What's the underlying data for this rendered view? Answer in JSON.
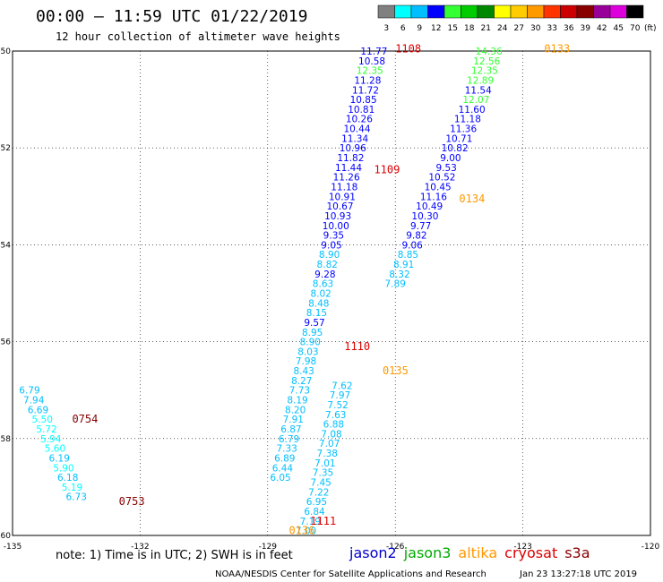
{
  "header": {
    "title": "00:00 – 11:59 UTC 01/22/2019",
    "subtitle": "12 hour collection of altimeter wave heights"
  },
  "colorbar": {
    "unit": "(ft)",
    "ticks": [
      "3",
      "6",
      "9",
      "12",
      "15",
      "18",
      "21",
      "24",
      "27",
      "30",
      "33",
      "36",
      "39",
      "42",
      "45",
      "70"
    ],
    "colors": [
      "#808080",
      "#00ffff",
      "#00bfff",
      "#0000ff",
      "#33ff33",
      "#00cc00",
      "#008800",
      "#ffff00",
      "#ffcc00",
      "#ff9900",
      "#ff3300",
      "#cc0000",
      "#880000",
      "#990099",
      "#dd00dd",
      "#000000"
    ]
  },
  "footer": {
    "note": "note:  1) Time is in UTC;  2) SWH is in feet",
    "credit": "NOAA/NESDIS Center for Satellite Applications and Research",
    "generated": "Jan 23 13:27:18 UTC 2019"
  },
  "legend": [
    {
      "name": "jason2",
      "color": "#0000cc"
    },
    {
      "name": "jason3",
      "color": "#00aa00"
    },
    {
      "name": "altika",
      "color": "#ff9900"
    },
    {
      "name": "cryosat",
      "color": "#dd0000"
    },
    {
      "name": "s3a",
      "color": "#880000"
    }
  ],
  "chart_data": {
    "type": "scatter",
    "xlim": [
      -135,
      -120
    ],
    "ylim": [
      -60,
      -50
    ],
    "x_ticks": [
      -135,
      -132,
      -129,
      -126,
      -123,
      -120
    ],
    "x_tick_labels": [
      "-135",
      "-132",
      "-129",
      "-126",
      "-123",
      "-120"
    ],
    "y_ticks": [
      -50,
      -52,
      -54,
      -56,
      -58,
      -60
    ],
    "y_tick_labels": [
      "-50",
      "-52",
      "-54",
      "-56",
      "-58",
      "-60"
    ],
    "grid": true,
    "color_scale": {
      "edges": [
        3,
        6,
        9,
        12,
        15,
        18,
        21,
        24,
        27,
        30,
        33,
        36,
        39,
        42,
        45,
        70
      ],
      "colors": [
        "#808080",
        "#00ffff",
        "#00bfff",
        "#0000ff",
        "#33ff33",
        "#00cc00",
        "#008800",
        "#ffff00",
        "#ffcc00",
        "#ff9900",
        "#ff3300",
        "#cc0000",
        "#880000",
        "#990099",
        "#dd00dd",
        "#000000"
      ]
    },
    "pass_labels": [
      {
        "text": "1108",
        "lon": -126.0,
        "lat": -49.95,
        "color": "#dd0000"
      },
      {
        "text": "1109",
        "lon": -126.5,
        "lat": -52.45,
        "color": "#dd0000"
      },
      {
        "text": "1110",
        "lon": -127.2,
        "lat": -56.1,
        "color": "#dd0000"
      },
      {
        "text": "1111",
        "lon": -128.0,
        "lat": -59.7,
        "color": "#dd0000"
      },
      {
        "text": "0133",
        "lon": -122.5,
        "lat": -49.95,
        "color": "#ff9900"
      },
      {
        "text": "0134",
        "lon": -124.5,
        "lat": -53.05,
        "color": "#ff9900"
      },
      {
        "text": "0135",
        "lon": -126.3,
        "lat": -56.6,
        "color": "#ff9900"
      },
      {
        "text": "0136",
        "lon": -128.5,
        "lat": -59.9,
        "color": "#ff9900"
      },
      {
        "text": "0754",
        "lon": -133.6,
        "lat": -57.6,
        "color": "#880000"
      },
      {
        "text": "0753",
        "lon": -132.5,
        "lat": -59.3,
        "color": "#880000"
      }
    ],
    "series": [
      {
        "name": "1108",
        "points": [
          {
            "lon": -126.5,
            "lat": -50.0,
            "v": 11.77
          },
          {
            "lon": -126.55,
            "lat": -50.2,
            "v": 10.58
          },
          {
            "lon": -126.6,
            "lat": -50.4,
            "v": 12.35
          },
          {
            "lon": -126.65,
            "lat": -50.6,
            "v": 11.28
          },
          {
            "lon": -126.7,
            "lat": -50.8,
            "v": 11.72
          },
          {
            "lon": -126.75,
            "lat": -51.0,
            "v": 10.85
          },
          {
            "lon": -126.8,
            "lat": -51.2,
            "v": 10.81
          },
          {
            "lon": -126.85,
            "lat": -51.4,
            "v": 10.26
          },
          {
            "lon": -126.9,
            "lat": -51.6,
            "v": 10.44
          },
          {
            "lon": -126.95,
            "lat": -51.8,
            "v": 11.34
          },
          {
            "lon": -127.0,
            "lat": -52.0,
            "v": 10.96
          }
        ]
      },
      {
        "name": "1109",
        "points": [
          {
            "lon": -127.05,
            "lat": -52.2,
            "v": 11.82
          },
          {
            "lon": -127.1,
            "lat": -52.4,
            "v": 11.44
          },
          {
            "lon": -127.15,
            "lat": -52.6,
            "v": 11.26
          },
          {
            "lon": -127.2,
            "lat": -52.8,
            "v": 11.18
          },
          {
            "lon": -127.25,
            "lat": -53.0,
            "v": 10.91
          },
          {
            "lon": -127.3,
            "lat": -53.2,
            "v": 10.67
          },
          {
            "lon": -127.35,
            "lat": -53.4,
            "v": 10.93
          },
          {
            "lon": -127.4,
            "lat": -53.6,
            "v": 10.0
          },
          {
            "lon": -127.45,
            "lat": -53.8,
            "v": 9.35
          },
          {
            "lon": -127.5,
            "lat": -54.0,
            "v": 9.05
          },
          {
            "lon": -127.55,
            "lat": -54.2,
            "v": 8.9
          },
          {
            "lon": -127.6,
            "lat": -54.4,
            "v": 8.82
          },
          {
            "lon": -127.65,
            "lat": -54.6,
            "v": 9.28
          },
          {
            "lon": -127.7,
            "lat": -54.8,
            "v": 8.63
          },
          {
            "lon": -127.75,
            "lat": -55.0,
            "v": 8.02
          },
          {
            "lon": -127.8,
            "lat": -55.2,
            "v": 8.48
          },
          {
            "lon": -127.85,
            "lat": -55.4,
            "v": 8.15
          }
        ]
      },
      {
        "name": "1110",
        "points": [
          {
            "lon": -127.9,
            "lat": -55.6,
            "v": 9.57
          },
          {
            "lon": -127.95,
            "lat": -55.8,
            "v": 8.95
          },
          {
            "lon": -128.0,
            "lat": -56.0,
            "v": 8.9
          },
          {
            "lon": -128.05,
            "lat": -56.2,
            "v": 8.03
          },
          {
            "lon": -128.1,
            "lat": -56.4,
            "v": 7.98
          },
          {
            "lon": -128.15,
            "lat": -56.6,
            "v": 8.43
          },
          {
            "lon": -128.2,
            "lat": -56.8,
            "v": 8.27
          },
          {
            "lon": -128.25,
            "lat": -57.0,
            "v": 7.73
          },
          {
            "lon": -128.3,
            "lat": -57.2,
            "v": 8.19
          },
          {
            "lon": -128.35,
            "lat": -57.4,
            "v": 8.2
          },
          {
            "lon": -128.4,
            "lat": -57.6,
            "v": 7.91
          },
          {
            "lon": -128.45,
            "lat": -57.8,
            "v": 6.87
          },
          {
            "lon": -128.5,
            "lat": -58.0,
            "v": 6.79
          },
          {
            "lon": -128.55,
            "lat": -58.2,
            "v": 7.33
          },
          {
            "lon": -128.6,
            "lat": -58.4,
            "v": 6.89
          },
          {
            "lon": -128.65,
            "lat": -58.6,
            "v": 6.44
          },
          {
            "lon": -128.7,
            "lat": -58.8,
            "v": 6.05
          }
        ]
      },
      {
        "name": "1111",
        "points": [
          {
            "lon": -128.1,
            "lat": -59.9,
            "v": 7.0
          },
          {
            "lon": -128.0,
            "lat": -59.7,
            "v": 7.19
          },
          {
            "lon": -127.9,
            "lat": -59.5,
            "v": 6.84
          },
          {
            "lon": -127.85,
            "lat": -59.3,
            "v": 6.95
          },
          {
            "lon": -127.8,
            "lat": -59.1,
            "v": 7.22
          },
          {
            "lon": -127.75,
            "lat": -58.9,
            "v": 7.45
          },
          {
            "lon": -127.7,
            "lat": -58.7,
            "v": 7.35
          },
          {
            "lon": -127.65,
            "lat": -58.5,
            "v": 7.01
          },
          {
            "lon": -127.6,
            "lat": -58.3,
            "v": 7.38
          },
          {
            "lon": -127.55,
            "lat": -58.1,
            "v": 7.07
          },
          {
            "lon": -127.5,
            "lat": -57.9,
            "v": 7.08
          },
          {
            "lon": -127.45,
            "lat": -57.7,
            "v": 6.88
          },
          {
            "lon": -127.4,
            "lat": -57.5,
            "v": 7.63
          },
          {
            "lon": -127.35,
            "lat": -57.3,
            "v": 7.52
          },
          {
            "lon": -127.3,
            "lat": -57.1,
            "v": 7.97
          },
          {
            "lon": -127.25,
            "lat": -56.9,
            "v": 7.62
          }
        ]
      },
      {
        "name": "0133",
        "points": [
          {
            "lon": -123.8,
            "lat": -50.0,
            "v": 14.36
          },
          {
            "lon": -123.85,
            "lat": -50.2,
            "v": 12.56
          },
          {
            "lon": -123.9,
            "lat": -50.4,
            "v": 12.35
          },
          {
            "lon": -124.0,
            "lat": -50.6,
            "v": 12.89
          },
          {
            "lon": -124.05,
            "lat": -50.8,
            "v": 11.54
          },
          {
            "lon": -124.1,
            "lat": -51.0,
            "v": 12.07
          },
          {
            "lon": -124.2,
            "lat": -51.2,
            "v": 11.6
          },
          {
            "lon": -124.3,
            "lat": -51.4,
            "v": 11.18
          },
          {
            "lon": -124.4,
            "lat": -51.6,
            "v": 11.36
          },
          {
            "lon": -124.5,
            "lat": -51.8,
            "v": 10.71
          },
          {
            "lon": -124.6,
            "lat": -52.0,
            "v": 10.82
          },
          {
            "lon": -124.7,
            "lat": -52.2,
            "v": 9.0
          }
        ]
      },
      {
        "name": "0134",
        "points": [
          {
            "lon": -124.8,
            "lat": -52.4,
            "v": 9.53
          },
          {
            "lon": -124.9,
            "lat": -52.6,
            "v": 10.52
          },
          {
            "lon": -125.0,
            "lat": -52.8,
            "v": 10.45
          },
          {
            "lon": -125.1,
            "lat": -53.0,
            "v": 11.16
          },
          {
            "lon": -125.2,
            "lat": -53.2,
            "v": 10.49
          },
          {
            "lon": -125.3,
            "lat": -53.4,
            "v": 10.3
          },
          {
            "lon": -125.4,
            "lat": -53.6,
            "v": 9.77
          },
          {
            "lon": -125.5,
            "lat": -53.8,
            "v": 9.82
          },
          {
            "lon": -125.6,
            "lat": -54.0,
            "v": 9.06
          },
          {
            "lon": -125.7,
            "lat": -54.2,
            "v": 8.85
          },
          {
            "lon": -125.8,
            "lat": -54.4,
            "v": 8.91
          },
          {
            "lon": -125.9,
            "lat": -54.6,
            "v": 8.32
          },
          {
            "lon": -126.0,
            "lat": -54.8,
            "v": 7.89
          }
        ]
      },
      {
        "name": "0754",
        "points": [
          {
            "lon": -134.6,
            "lat": -57.0,
            "v": 6.79
          },
          {
            "lon": -134.5,
            "lat": -57.2,
            "v": 7.94
          },
          {
            "lon": -134.4,
            "lat": -57.4,
            "v": 6.69
          },
          {
            "lon": -134.3,
            "lat": -57.6,
            "v": 5.5
          },
          {
            "lon": -134.2,
            "lat": -57.8,
            "v": 5.72
          },
          {
            "lon": -134.1,
            "lat": -58.0,
            "v": 5.94
          },
          {
            "lon": -134.0,
            "lat": -58.2,
            "v": 5.6
          },
          {
            "lon": -133.9,
            "lat": -58.4,
            "v": 6.19
          },
          {
            "lon": -133.8,
            "lat": -58.6,
            "v": 5.9
          }
        ]
      },
      {
        "name": "0753",
        "points": [
          {
            "lon": -133.7,
            "lat": -58.8,
            "v": 6.18
          },
          {
            "lon": -133.6,
            "lat": -59.0,
            "v": 5.19
          },
          {
            "lon": -133.5,
            "lat": -59.2,
            "v": 6.73
          }
        ]
      }
    ]
  }
}
